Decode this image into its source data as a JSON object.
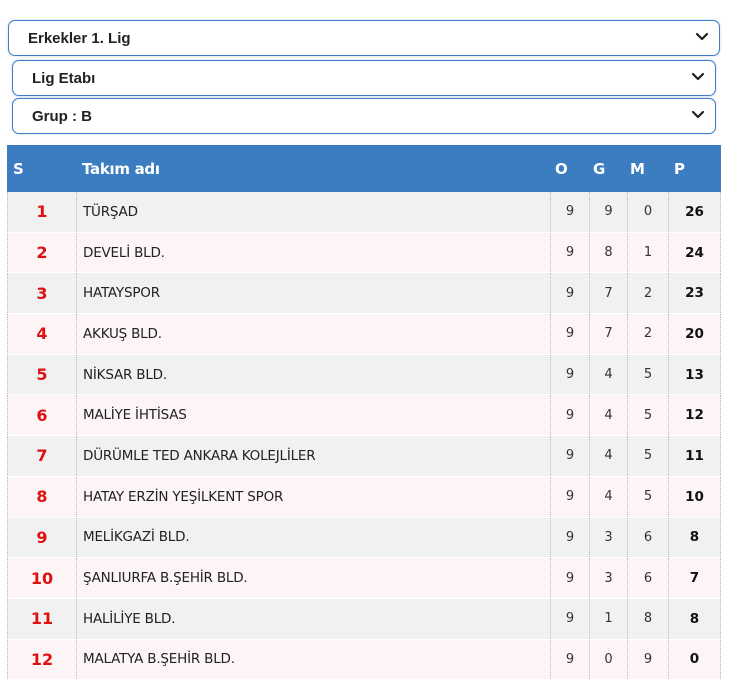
{
  "selects": {
    "league": "Erkekler 1. Lig",
    "stage": "Lig Etabı",
    "group": "Grup : B"
  },
  "table": {
    "headers": {
      "s": "S",
      "name": "Takım adı",
      "o": "O",
      "g": "G",
      "m": "M",
      "p": "P"
    },
    "rows": [
      {
        "s": "1",
        "name": "TÜRŞAD",
        "o": "9",
        "g": "9",
        "m": "0",
        "p": "26"
      },
      {
        "s": "2",
        "name": "DEVELİ BLD.",
        "o": "9",
        "g": "8",
        "m": "1",
        "p": "24"
      },
      {
        "s": "3",
        "name": "HATAYSPOR",
        "o": "9",
        "g": "7",
        "m": "2",
        "p": "23"
      },
      {
        "s": "4",
        "name": "AKKUŞ BLD.",
        "o": "9",
        "g": "7",
        "m": "2",
        "p": "20"
      },
      {
        "s": "5",
        "name": "NİKSAR BLD.",
        "o": "9",
        "g": "4",
        "m": "5",
        "p": "13"
      },
      {
        "s": "6",
        "name": "MALİYE İHTİSAS",
        "o": "9",
        "g": "4",
        "m": "5",
        "p": "12"
      },
      {
        "s": "7",
        "name": "DÜRÜMLE TED ANKARA KOLEJLİLER",
        "o": "9",
        "g": "4",
        "m": "5",
        "p": "11"
      },
      {
        "s": "8",
        "name": "HATAY ERZİN YEŞİLKENT SPOR",
        "o": "9",
        "g": "4",
        "m": "5",
        "p": "10"
      },
      {
        "s": "9",
        "name": "MELİKGAZİ BLD.",
        "o": "9",
        "g": "3",
        "m": "6",
        "p": "8"
      },
      {
        "s": "10",
        "name": "ŞANLIURFA B.ŞEHİR BLD.",
        "o": "9",
        "g": "3",
        "m": "6",
        "p": "7"
      },
      {
        "s": "11",
        "name": "HALİLİYE BLD.",
        "o": "9",
        "g": "1",
        "m": "8",
        "p": "8"
      },
      {
        "s": "12",
        "name": "MALATYA B.ŞEHİR BLD.",
        "o": "9",
        "g": "0",
        "m": "9",
        "p": "0"
      }
    ]
  },
  "icons": {
    "select_arrow": "chevron-down-icon"
  },
  "colors": {
    "header_bg": "#3c7cc0",
    "rank_color": "#dd1111",
    "select_border": "#3f7fc7"
  }
}
